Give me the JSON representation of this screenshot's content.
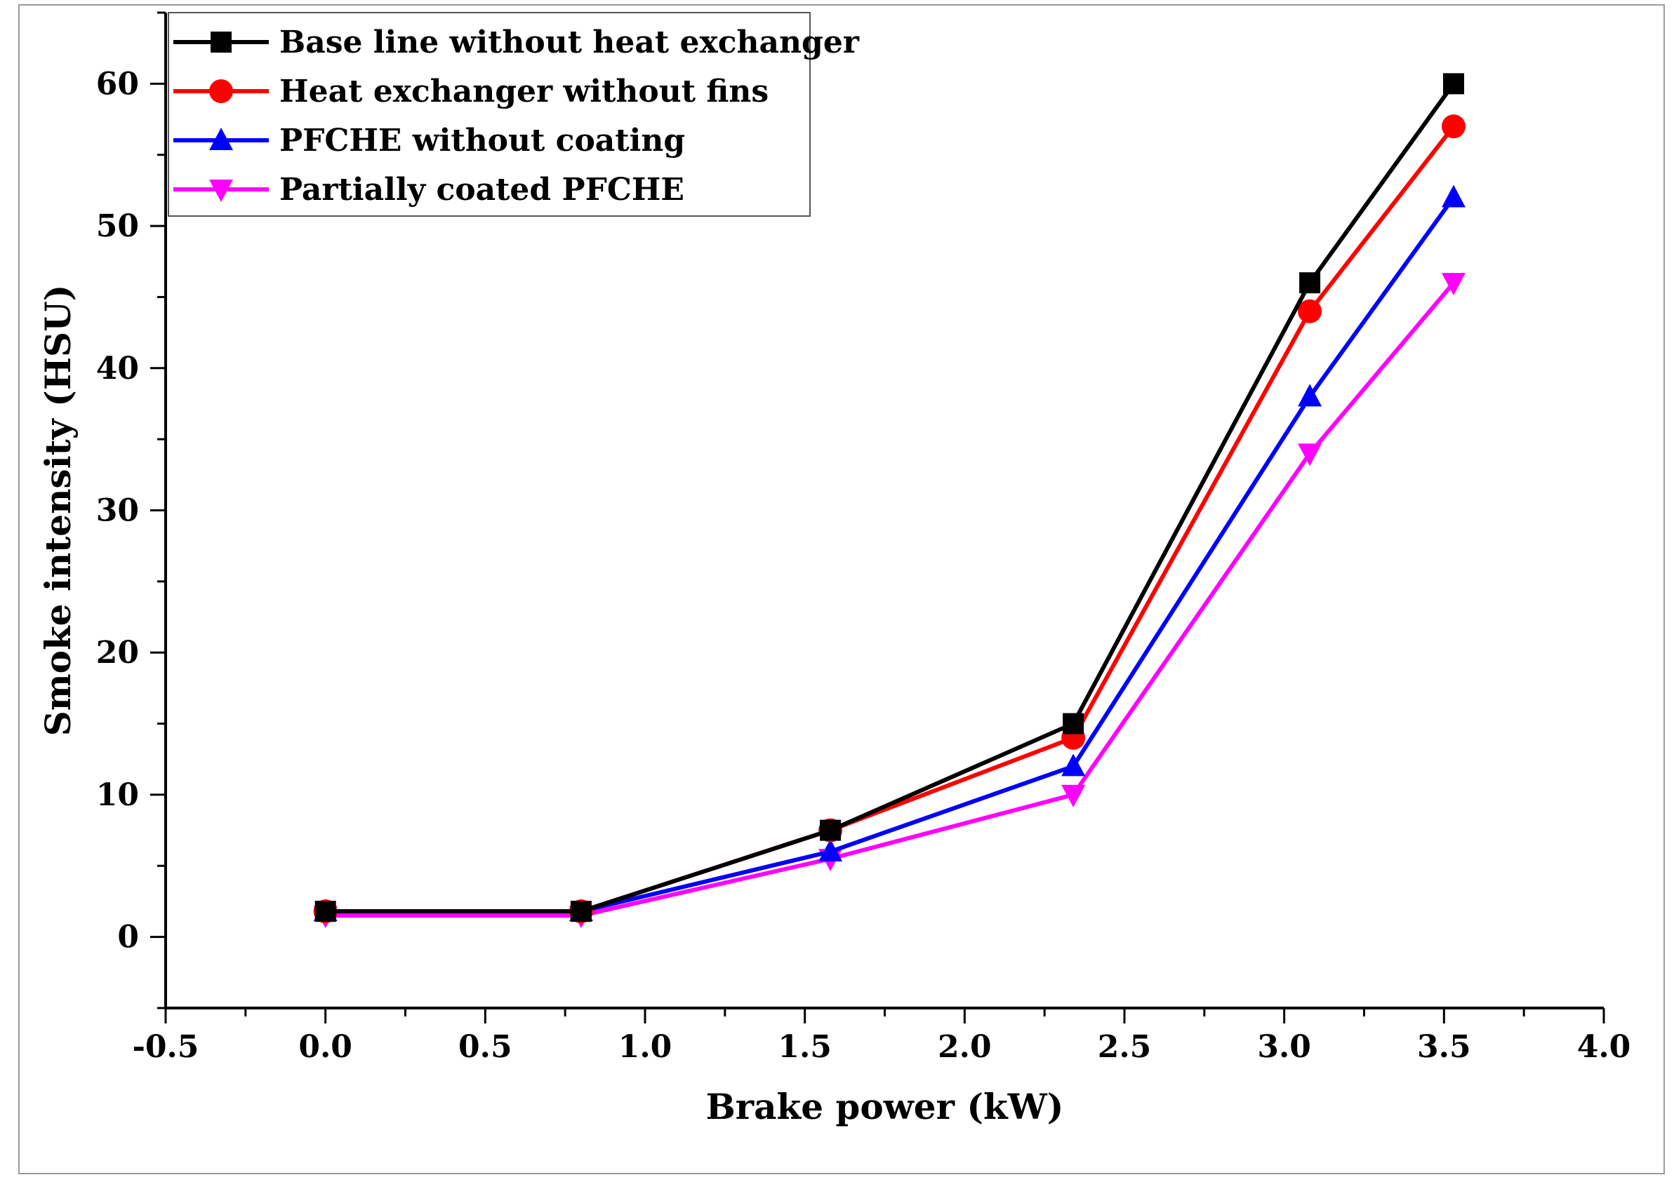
{
  "chart_data": {
    "type": "line",
    "title": "",
    "xlabel": "Brake power (kW)",
    "ylabel": "Smoke intensity (HSU)",
    "xlim": [
      -0.5,
      4.0
    ],
    "ylim": [
      -5,
      65
    ],
    "xticks": [
      "-0.5",
      "0.0",
      "0.5",
      "1.0",
      "1.5",
      "2.0",
      "2.5",
      "3.0",
      "3.5",
      "4.0"
    ],
    "yticks": [
      "0",
      "10",
      "20",
      "30",
      "40",
      "50",
      "60"
    ],
    "legend_position": "top-left",
    "grid": false,
    "x": [
      0.0,
      0.8,
      1.58,
      2.34,
      3.08,
      3.53
    ],
    "series": [
      {
        "name": "Base line without heat exchanger",
        "color": "#000000",
        "marker": "square",
        "values": [
          1.8,
          1.8,
          7.5,
          15,
          46,
          60
        ]
      },
      {
        "name": "Heat exchanger without fins",
        "color": "#ff0000",
        "marker": "circle",
        "values": [
          1.8,
          1.8,
          7.5,
          14,
          44,
          57
        ]
      },
      {
        "name": "PFCHE without coating",
        "color": "#0000ff",
        "marker": "triangle-up",
        "values": [
          1.8,
          1.8,
          6,
          12,
          38,
          52
        ]
      },
      {
        "name": "Partially coated PFCHE",
        "color": "#ff00ff",
        "marker": "triangle-down",
        "values": [
          1.5,
          1.5,
          5.5,
          10,
          34,
          46
        ]
      }
    ]
  }
}
